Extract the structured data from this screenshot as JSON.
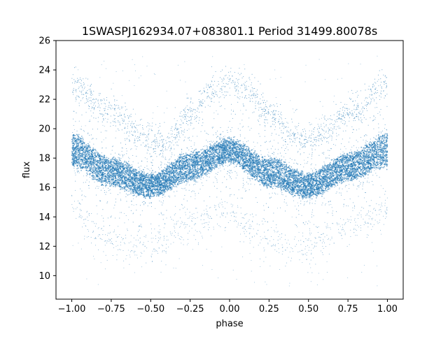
{
  "chart_data": {
    "type": "scatter",
    "title": "1SWASPJ162934.07+083801.1 Period 31499.80078s",
    "xlabel": "phase",
    "ylabel": "flux",
    "xlim": [
      -1.1,
      1.1
    ],
    "ylim": [
      8.4,
      26
    ],
    "x_ticks": [
      -1.0,
      -0.75,
      -0.5,
      -0.25,
      0.0,
      0.25,
      0.5,
      0.75,
      1.0
    ],
    "x_tick_labels": [
      "−1.00",
      "−0.75",
      "−0.50",
      "−0.25",
      "0.00",
      "0.25",
      "0.50",
      "0.75",
      "1.00"
    ],
    "y_ticks": [
      10,
      12,
      14,
      16,
      18,
      20,
      22,
      24,
      26
    ],
    "y_tick_labels": [
      "10",
      "12",
      "14",
      "16",
      "18",
      "20",
      "22",
      "24",
      "26"
    ],
    "grid": false,
    "legend": "none",
    "marker_color": "#1f77b4",
    "series": [
      {
        "main_band": {
          "phase": [
            -1.0,
            -0.75,
            -0.5,
            -0.25,
            0.0,
            0.25,
            0.5,
            0.75,
            1.0
          ],
          "flux_upper": [
            19.6,
            18.0,
            16.9,
            18.3,
            19.3,
            18.0,
            16.9,
            18.3,
            19.6
          ],
          "flux_lower": [
            17.4,
            16.1,
            15.3,
            16.5,
            17.7,
            16.1,
            15.3,
            16.5,
            17.4
          ]
        },
        "secondary_curve": {
          "phase": [
            -1.0,
            -0.75,
            -0.5,
            -0.4,
            -0.25,
            -0.1,
            0.0,
            0.1,
            0.25,
            0.4,
            0.5,
            0.75,
            1.0
          ],
          "flux": [
            23.0,
            21.0,
            19.2,
            18.9,
            21.0,
            22.6,
            23.0,
            22.6,
            21.0,
            19.6,
            19.2,
            21.0,
            23.0
          ]
        },
        "low_outlier_curve": {
          "phase": [
            -1.0,
            -0.75,
            -0.5,
            -0.25,
            0.0,
            0.25,
            0.5,
            0.75,
            1.0
          ],
          "flux": [
            14.5,
            12.2,
            12.0,
            13.5,
            14.3,
            12.2,
            12.0,
            13.5,
            14.5
          ]
        }
      }
    ]
  }
}
